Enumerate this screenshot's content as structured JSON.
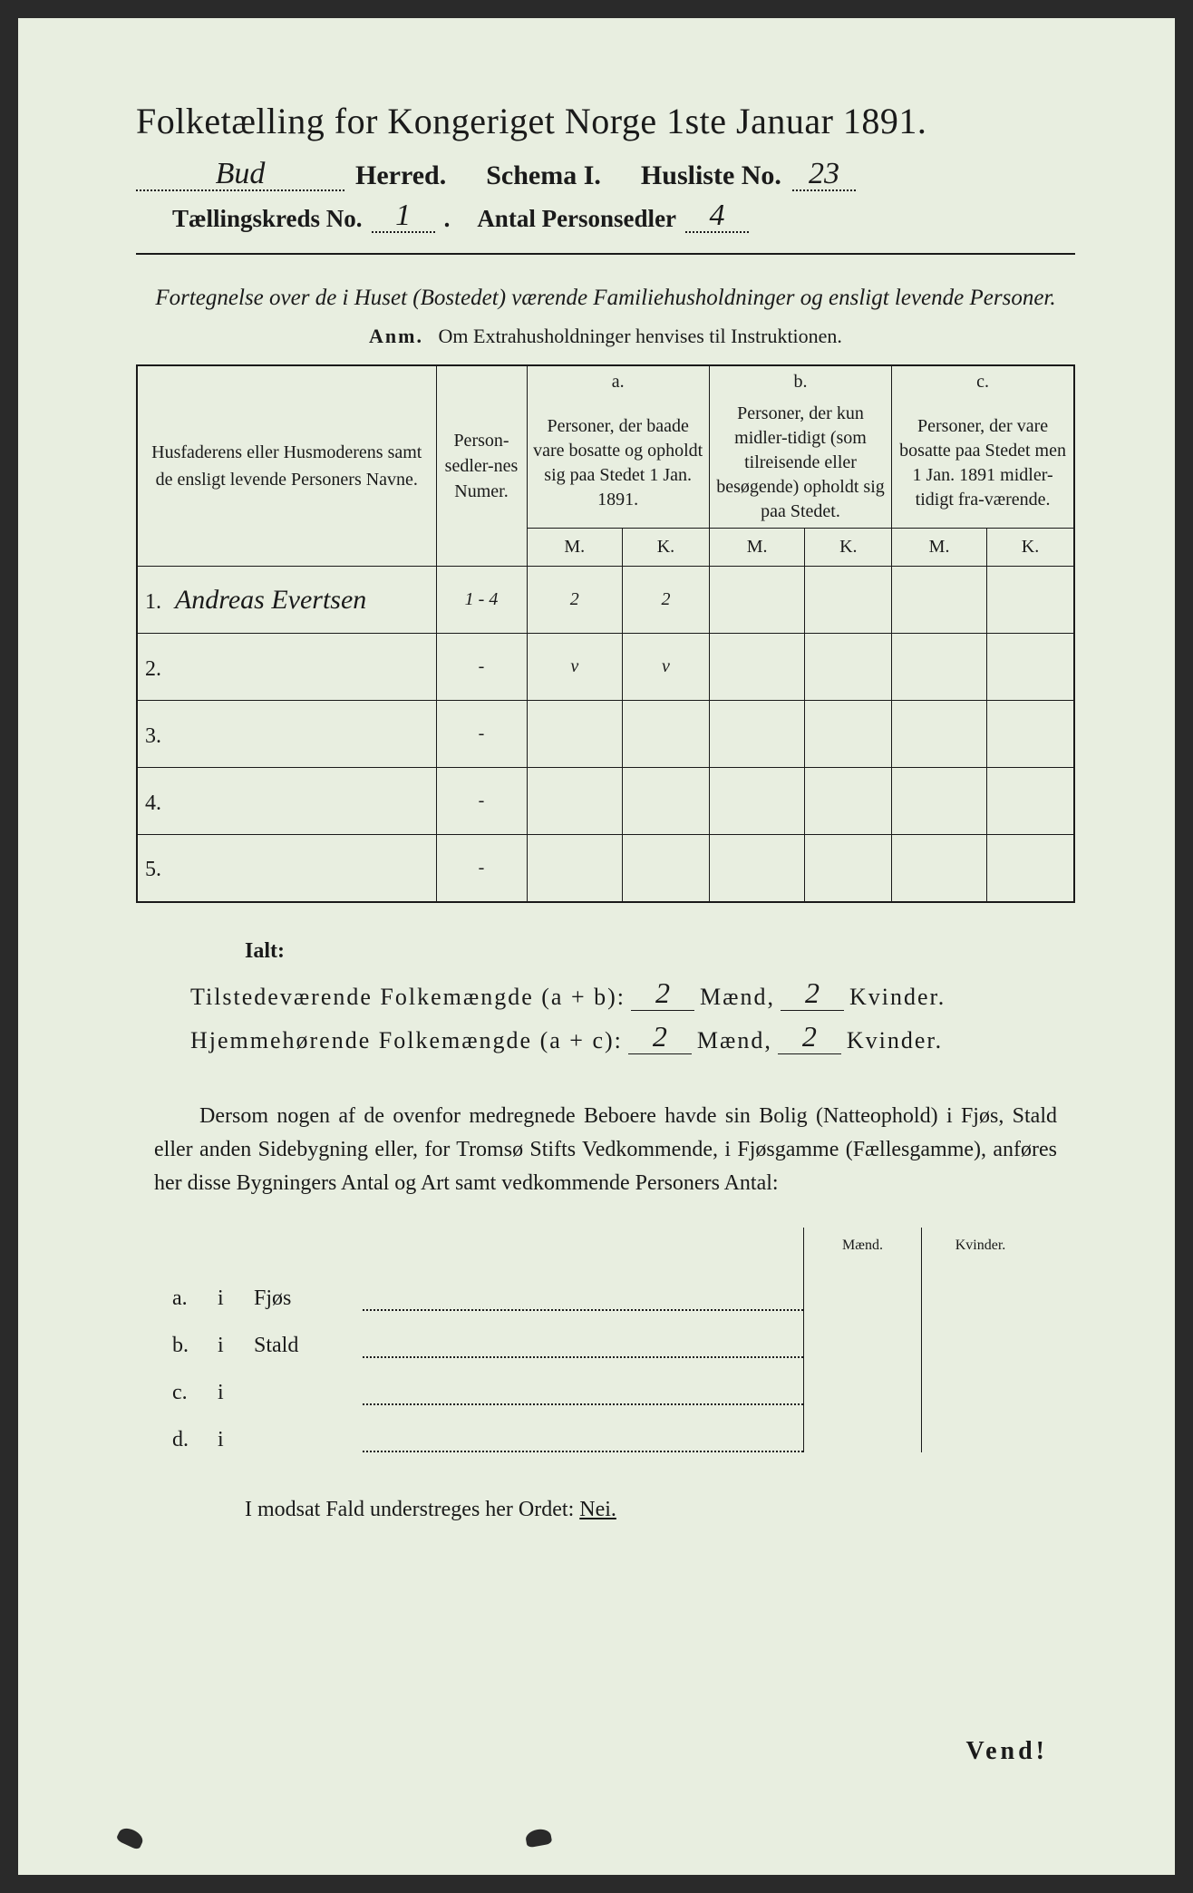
{
  "title": "Folketælling for Kongeriget Norge 1ste Januar 1891.",
  "header": {
    "herred_value": "Bud",
    "herred_label": "Herred.",
    "schema_label": "Schema I.",
    "husliste_label": "Husliste No.",
    "husliste_value": "23",
    "kreds_label": "Tællingskreds No.",
    "kreds_value": "1",
    "personsedler_label": "Antal Personsedler",
    "personsedler_value": "4"
  },
  "subtitle": "Fortegnelse over de i Huset (Bostedet) værende Familiehusholdninger og ensligt levende Personer.",
  "anm_label": "Anm.",
  "anm_text": "Om Extrahusholdninger henvises til Instruktionen.",
  "table": {
    "col_name": "Husfaderens eller Husmoderens samt de ensligt levende Personers Navne.",
    "col_num": "Person-sedler-nes Numer.",
    "col_a_letter": "a.",
    "col_a": "Personer, der baade vare bosatte og opholdt sig paa Stedet 1 Jan. 1891.",
    "col_b_letter": "b.",
    "col_b": "Personer, der kun midler-tidigt (som tilreisende eller besøgende) opholdt sig paa Stedet.",
    "col_c_letter": "c.",
    "col_c": "Personer, der vare bosatte paa Stedet men 1 Jan. 1891 midler-tidigt fra-værende.",
    "M": "M.",
    "K": "K.",
    "rows": [
      {
        "n": "1.",
        "name": "Andreas Evertsen",
        "num": "1 - 4",
        "aM": "2",
        "aK": "2",
        "bM": "",
        "bK": "",
        "cM": "",
        "cK": ""
      },
      {
        "n": "2.",
        "name": "",
        "num": "-",
        "aM": "v",
        "aK": "v",
        "bM": "",
        "bK": "",
        "cM": "",
        "cK": ""
      },
      {
        "n": "3.",
        "name": "",
        "num": "-",
        "aM": "",
        "aK": "",
        "bM": "",
        "bK": "",
        "cM": "",
        "cK": ""
      },
      {
        "n": "4.",
        "name": "",
        "num": "-",
        "aM": "",
        "aK": "",
        "bM": "",
        "bK": "",
        "cM": "",
        "cK": ""
      },
      {
        "n": "5.",
        "name": "",
        "num": "-",
        "aM": "",
        "aK": "",
        "bM": "",
        "bK": "",
        "cM": "",
        "cK": ""
      }
    ]
  },
  "totals": {
    "ialt": "Ialt:",
    "line1_label": "Tilstedeværende Folkemængde (a + b):",
    "line2_label": "Hjemmehørende Folkemængde (a + c):",
    "maend": "Mænd,",
    "kvinder": "Kvinder.",
    "l1_m": "2",
    "l1_k": "2",
    "l2_m": "2",
    "l2_k": "2"
  },
  "paragraph": "Dersom nogen af de ovenfor medregnede Beboere havde sin Bolig (Natteophold) i Fjøs, Stald eller anden Sidebygning eller, for Tromsø Stifts Vedkommende, i Fjøsgamme (Fællesgamme), anføres her disse Bygningers Antal og Art samt vedkommende Personers Antal:",
  "sidelist": {
    "head_m": "Mænd.",
    "head_k": "Kvinder.",
    "rows": [
      {
        "letter": "a.",
        "i": "i",
        "label": "Fjøs"
      },
      {
        "letter": "b.",
        "i": "i",
        "label": "Stald"
      },
      {
        "letter": "c.",
        "i": "i",
        "label": ""
      },
      {
        "letter": "d.",
        "i": "i",
        "label": ""
      }
    ]
  },
  "footer": "I modsat Fald understreges her Ordet:",
  "footer_word": "Nei.",
  "vend": "Vend!",
  "colors": {
    "paper": "#e8eee0",
    "ink": "#1a1a1a",
    "background": "#2a2a2a"
  }
}
